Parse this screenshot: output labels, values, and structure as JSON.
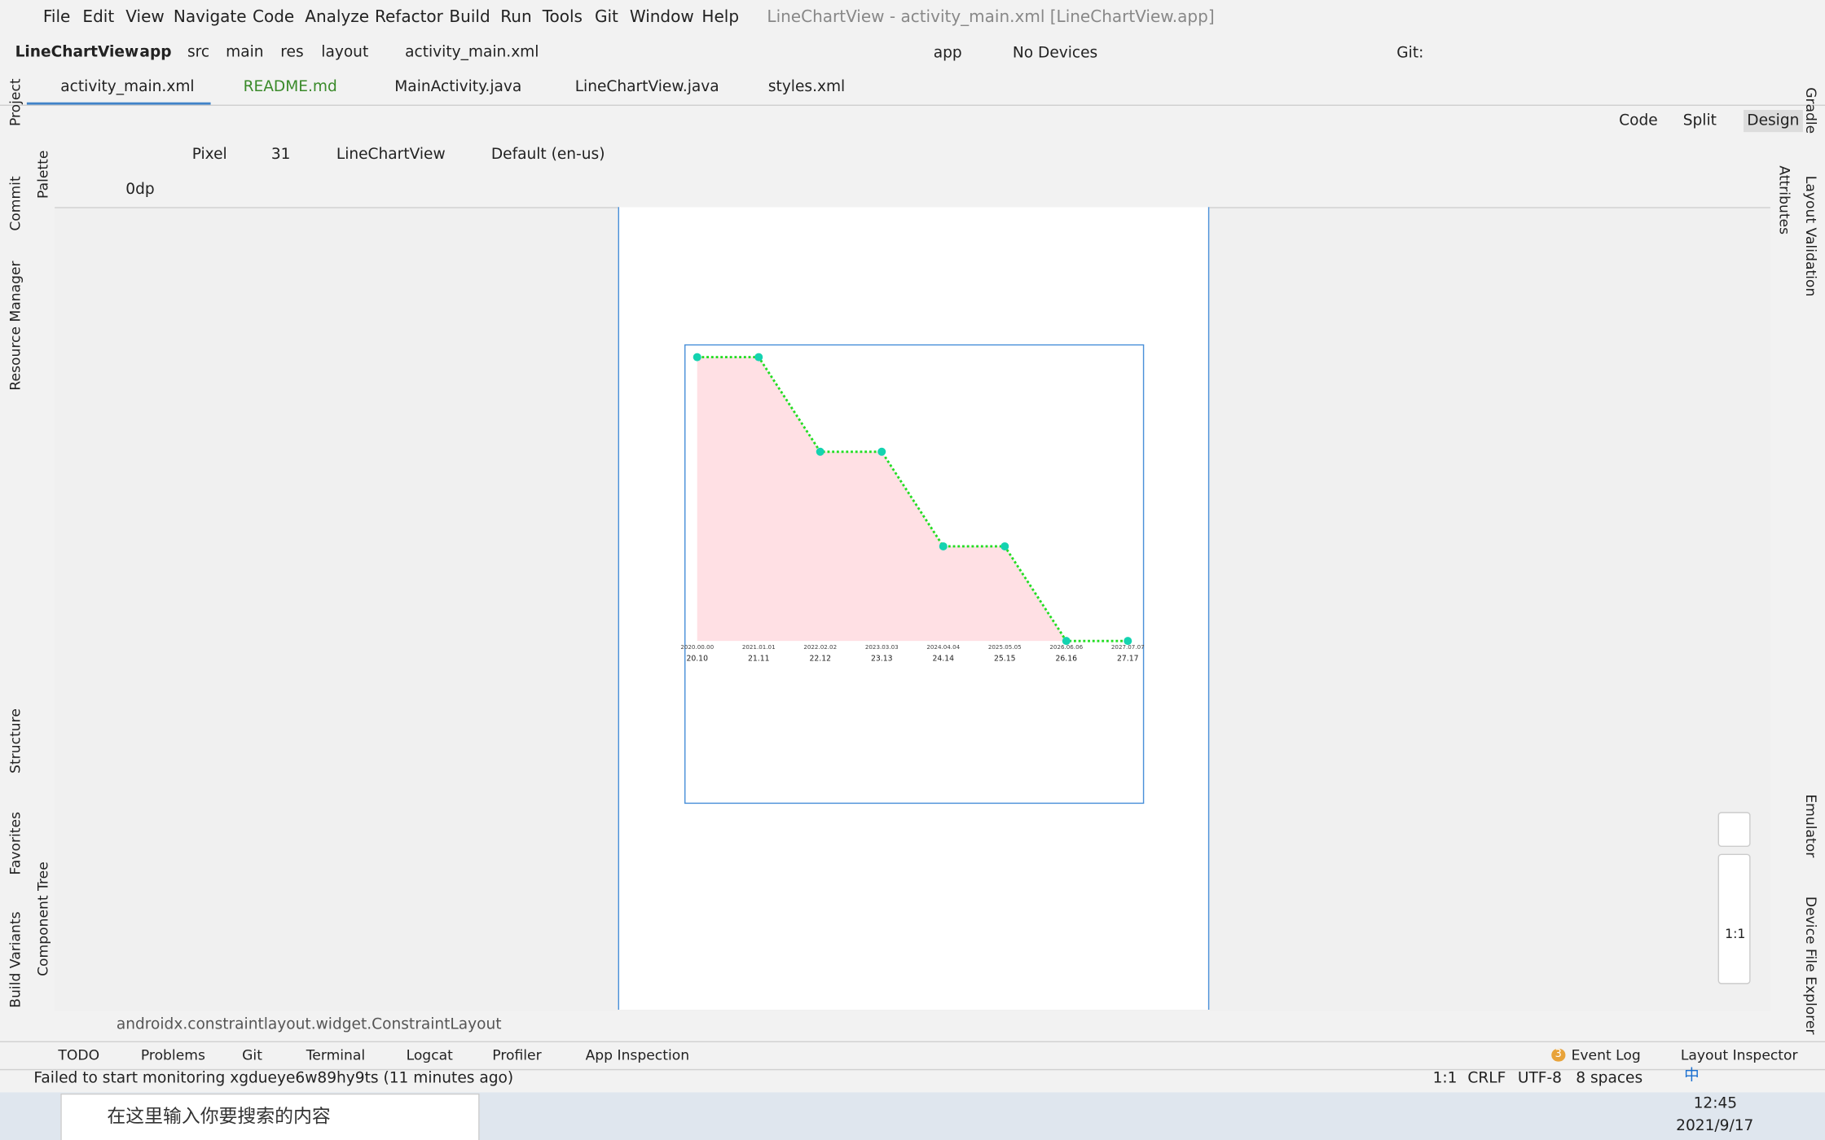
{
  "menu": [
    "File",
    "Edit",
    "View",
    "Navigate",
    "Code",
    "Analyze",
    "Refactor",
    "Build",
    "Run",
    "Tools",
    "Git",
    "Window",
    "Help"
  ],
  "window_title": "LineChartView - activity_main.xml [LineChartView.app]",
  "breadcrumb": [
    "LineChartView",
    "app",
    "src",
    "main",
    "res",
    "layout",
    "activity_main.xml"
  ],
  "run_config": "app",
  "device": "No Devices",
  "git_label": "Git:",
  "tabs": [
    "activity_main.xml",
    "README.md",
    "MainActivity.java",
    "LineChartView.java",
    "styles.xml"
  ],
  "view_modes": [
    "Code",
    "Split",
    "Design"
  ],
  "design_toolbar": [
    "Pixel",
    "31",
    "LineChartView",
    "Default (en-us)",
    "0dp"
  ],
  "left_tools": [
    "Project",
    "Commit",
    "Resource Manager",
    "Structure",
    "Favorites",
    "Build Variants"
  ],
  "palette_tools": [
    "Palette",
    "Component Tree"
  ],
  "right_tools": [
    "Gradle",
    "Attributes",
    "Layout Validation",
    "Emulator",
    "Device File Explorer"
  ],
  "zoom": "1:1",
  "layout_class": "androidx.constraintlayout.widget.ConstraintLayout",
  "bottom_tools": [
    "TODO",
    "Problems",
    "Git",
    "Terminal",
    "Logcat",
    "Profiler",
    "App Inspection",
    "Event Log",
    "Layout Inspector"
  ],
  "event_count": "3",
  "status": {
    "message": "Failed to start monitoring xgdueye6w89hy9ts (11 minutes ago)",
    "position": "1:1",
    "line_separator": "CRLF",
    "encoding": "UTF-8",
    "indent": "8 spaces"
  },
  "taskbar": {
    "search": "在这里输入你要搜索的内容",
    "time": "12:45",
    "date": "2021/9/17",
    "ime": "中"
  },
  "chart_data": {
    "type": "line",
    "dates": [
      "2020.00.00",
      "2021.01.01",
      "2022.02.02",
      "2023.03.03",
      "2024.04.04",
      "2025.05.05",
      "2026.06.06",
      "2027.07.07"
    ],
    "categories": [
      "20.10",
      "21.11",
      "22.12",
      "23.13",
      "24.14",
      "25.15",
      "26.16",
      "27.17"
    ],
    "series": [
      {
        "color": "#22dd22",
        "values": [
          3,
          3,
          2,
          2,
          1,
          1,
          0,
          0
        ]
      }
    ],
    "point_color": "#14d3b0",
    "fill_color": "#ffe0e4",
    "ylim": [
      0,
      3
    ]
  }
}
